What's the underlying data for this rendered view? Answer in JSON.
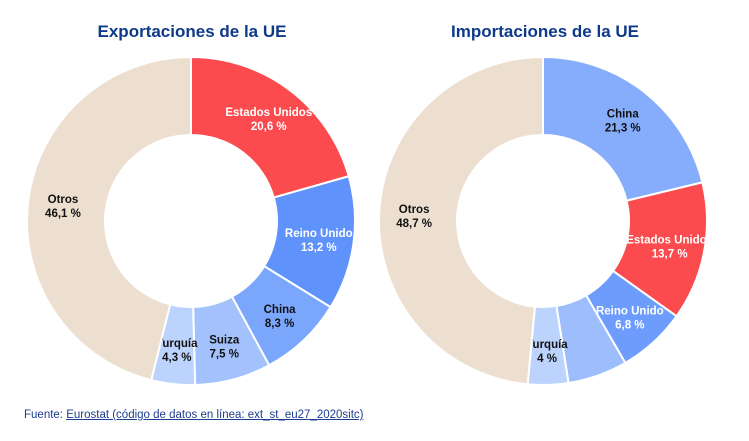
{
  "colors": {
    "title": "#0e3a8a",
    "otros": "#ecdfcf",
    "estados_unidos": "#fb4b4e",
    "reino_unido": "#6092fb",
    "china_exp": "#7aa6fb",
    "china_imp": "#86acfc",
    "suiza": "#a3c2fd",
    "turquia": "#bcd3fe",
    "ru_imp": "#6d9cfc",
    "other_imp": "#9dbdfd"
  },
  "chart_data": [
    {
      "type": "pie",
      "title": "Exportaciones de la UE",
      "slices": [
        {
          "name": "Estados Unidos",
          "value": 20.6,
          "label": "20,6 %",
          "color": "#fb4b4e",
          "text_color": "#ffffff"
        },
        {
          "name": "Reino Unido",
          "value": 13.2,
          "label": "13,2 %",
          "color": "#6092fb",
          "text_color": "#ffffff"
        },
        {
          "name": "China",
          "value": 8.3,
          "label": "8,3 %",
          "color": "#7aa6fb",
          "text_color": "#111111"
        },
        {
          "name": "Suiza",
          "value": 7.5,
          "label": "7,5 %",
          "color": "#a3c2fd",
          "text_color": "#111111"
        },
        {
          "name": "Turquía",
          "value": 4.3,
          "label": "4,3 %",
          "color": "#bcd3fe",
          "text_color": "#111111"
        },
        {
          "name": "Otros",
          "value": 46.1,
          "label": "46,1 %",
          "color": "#ecdfcf",
          "text_color": "#111111"
        }
      ]
    },
    {
      "type": "pie",
      "title": "Importaciones de la UE",
      "slices": [
        {
          "name": "China",
          "value": 21.3,
          "label": "21,3 %",
          "color": "#86acfc",
          "text_color": "#111111"
        },
        {
          "name": "Estados Unidos",
          "value": 13.7,
          "label": "13,7 %",
          "color": "#fb4b4e",
          "text_color": "#ffffff"
        },
        {
          "name": "Reino Unido",
          "value": 6.8,
          "label": "6,8 %",
          "color": "#6d9cfc",
          "text_color": "#ffffff"
        },
        {
          "name": "",
          "value": 5.9,
          "label": "",
          "color": "#9dbdfd",
          "text_color": "#111111"
        },
        {
          "name": "Turquía",
          "value": 4.0,
          "label": "4 %",
          "color": "#bcd3fe",
          "text_color": "#111111"
        },
        {
          "name": "Otros",
          "value": 48.7,
          "label": "48,7 %",
          "color": "#ecdfcf",
          "text_color": "#111111"
        }
      ]
    }
  ],
  "source": {
    "prefix": "Fuente: ",
    "link_text": "Eurostat (código de datos en línea: ext_st_eu27_2020sitc)"
  }
}
